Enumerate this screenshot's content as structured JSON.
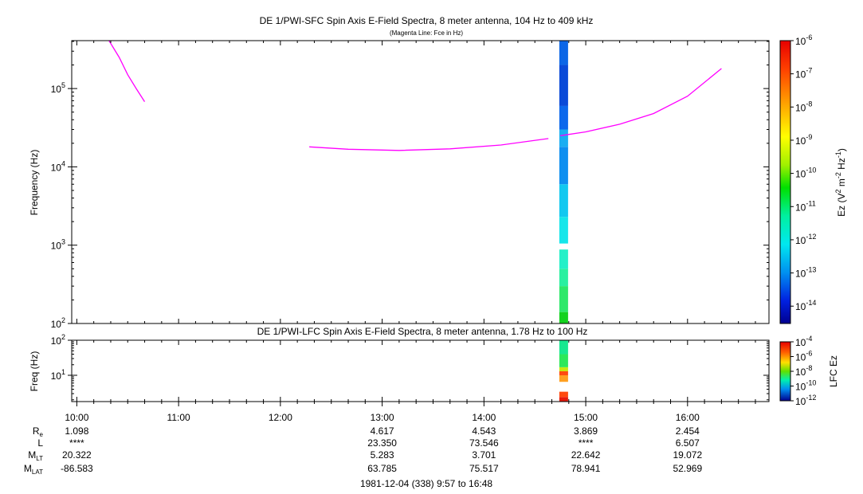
{
  "chart_data": [
    {
      "type": "heatmap",
      "title": "DE 1/PWI-SFC  Spin Axis E-Field Spectra, 8 meter antenna, 104 Hz to 409 kHz",
      "subtitle": "(Magenta Line: Fce in Hz)",
      "ylabel": "Frequency (Hz)",
      "yscale": "log",
      "ylim": [
        100,
        409000
      ],
      "y_ticks": [
        {
          "base": "10",
          "exp": "2"
        },
        {
          "base": "10",
          "exp": "3"
        },
        {
          "base": "10",
          "exp": "4"
        },
        {
          "base": "10",
          "exp": "5"
        }
      ],
      "xlim": [
        "09:57",
        "16:48"
      ],
      "colorbar": {
        "label_parts": [
          "Ez (V",
          "2",
          " m",
          "-2",
          " Hz",
          "-1",
          ")"
        ],
        "scale": "log",
        "range": [
          3e-15,
          1e-06
        ],
        "ticks": [
          {
            "base": "10",
            "exp": "-6"
          },
          {
            "base": "10",
            "exp": "-7"
          },
          {
            "base": "10",
            "exp": "-8"
          },
          {
            "base": "10",
            "exp": "-9"
          },
          {
            "base": "10",
            "exp": "-10"
          },
          {
            "base": "10",
            "exp": "-11"
          },
          {
            "base": "10",
            "exp": "-12"
          },
          {
            "base": "10",
            "exp": "-13"
          },
          {
            "base": "10",
            "exp": "-14"
          }
        ]
      },
      "spectra_column": {
        "time": "14:47",
        "bands": [
          {
            "f_low": 100,
            "f_high": 140,
            "color": "#14d21e"
          },
          {
            "f_low": 140,
            "f_high": 300,
            "color": "#2ee86a"
          },
          {
            "f_low": 300,
            "f_high": 500,
            "color": "#2af0a0"
          },
          {
            "f_low": 500,
            "f_high": 880,
            "color": "#25f0c8"
          },
          {
            "f_low": 1050,
            "f_high": 2300,
            "color": "#16e6ea"
          },
          {
            "f_low": 2300,
            "f_high": 6000,
            "color": "#12c8f0"
          },
          {
            "f_low": 6000,
            "f_high": 18000,
            "color": "#0e8ff0"
          },
          {
            "f_low": 18000,
            "f_high": 30000,
            "color": "#1aaef2"
          },
          {
            "f_low": 30000,
            "f_high": 60000,
            "color": "#0c68ec"
          },
          {
            "f_low": 60000,
            "f_high": 200000,
            "color": "#0a4ad8"
          },
          {
            "f_low": 200000,
            "f_high": 409000,
            "color": "#0c66e6"
          }
        ]
      },
      "fce_series": [
        {
          "x": [
            "10:19",
            "10:25",
            "10:30",
            "10:35",
            "10:40"
          ],
          "y": [
            409000,
            250000,
            150000,
            100000,
            68000
          ]
        },
        {
          "x": [
            "12:17",
            "12:40",
            "13:10",
            "13:40",
            "14:10",
            "14:38"
          ],
          "y": [
            18000,
            16800,
            16200,
            17000,
            19000,
            23000
          ]
        },
        {
          "x": [
            "14:45",
            "15:00",
            "15:20",
            "15:40",
            "16:00",
            "16:20"
          ],
          "y": [
            25000,
            28000,
            35000,
            48000,
            80000,
            180000
          ]
        }
      ]
    },
    {
      "type": "heatmap",
      "title": "DE 1/PWI-LFC  Spin Axis E-Field Spectra, 8 meter antenna, 1.78 Hz to 100 Hz",
      "ylabel": "Freq (Hz)",
      "yscale": "log",
      "ylim": [
        1.78,
        100
      ],
      "y_ticks": [
        {
          "base": "10",
          "exp": "1"
        },
        {
          "base": "10",
          "exp": "2"
        }
      ],
      "xlim": [
        "09:57",
        "16:48"
      ],
      "colorbar": {
        "label": "LFC Ez",
        "scale": "log",
        "range": [
          1e-12,
          0.0001
        ],
        "ticks": [
          {
            "base": "10",
            "exp": "-4"
          },
          {
            "base": "10",
            "exp": "-6"
          },
          {
            "base": "10",
            "exp": "-8"
          },
          {
            "base": "10",
            "exp": "-10"
          },
          {
            "base": "10",
            "exp": "-12"
          }
        ]
      },
      "spectra_column": {
        "time": "14:47",
        "bands": [
          {
            "f_low": 1.78,
            "f_high": 2.4,
            "color": "#e81a0c"
          },
          {
            "f_low": 2.4,
            "f_high": 3.4,
            "color": "#ff4a10"
          },
          {
            "f_low": 6.5,
            "f_high": 10,
            "color": "#ffa020"
          },
          {
            "f_low": 10,
            "f_high": 13,
            "color": "#ff4a10"
          },
          {
            "f_low": 13,
            "f_high": 17,
            "color": "#c8e810"
          },
          {
            "f_low": 17,
            "f_high": 40,
            "color": "#2de85a"
          },
          {
            "f_low": 40,
            "f_high": 100,
            "color": "#18e890"
          }
        ]
      }
    }
  ],
  "x_axis": {
    "tick_labels": [
      "10:00",
      "11:00",
      "12:00",
      "13:00",
      "14:00",
      "15:00",
      "16:00"
    ]
  },
  "ephemeris": {
    "rows": [
      {
        "label": "R",
        "sub": "e",
        "values": [
          "1.098",
          "",
          "",
          "4.617",
          "4.543",
          "3.869",
          "2.454"
        ]
      },
      {
        "label": "L",
        "sub": "",
        "values": [
          "****",
          "",
          "",
          "23.350",
          "73.546",
          "****",
          "6.507"
        ]
      },
      {
        "label": "M",
        "sub": "LT",
        "values": [
          "20.322",
          "",
          "",
          "5.283",
          "3.701",
          "22.642",
          "19.072"
        ]
      },
      {
        "label": "M",
        "sub": "LAT",
        "values": [
          "-86.583",
          "",
          "",
          "63.785",
          "75.517",
          "78.941",
          "52.969"
        ]
      }
    ]
  },
  "footer": "1981-12-04 (338) 9:57 to 16:48",
  "colors": {
    "fce_line": "#ff00ff",
    "axis": "#000000"
  }
}
